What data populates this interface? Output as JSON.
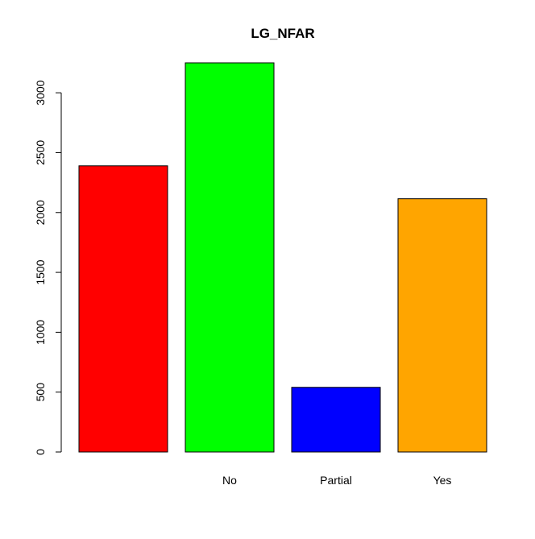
{
  "chart_data": {
    "type": "bar",
    "title": "LG_NFAR",
    "xlabel": "",
    "ylabel": "",
    "categories": [
      "",
      "No",
      "Partial",
      "Yes"
    ],
    "values": [
      2390,
      3250,
      540,
      2115
    ],
    "colors": [
      "#ff0000",
      "#00ff00",
      "#0000ff",
      "#ffa500"
    ],
    "ylim": [
      0,
      3250
    ],
    "yticks": [
      0,
      500,
      1000,
      1500,
      2000,
      2500,
      3000
    ],
    "grid": false,
    "legend": "none"
  }
}
